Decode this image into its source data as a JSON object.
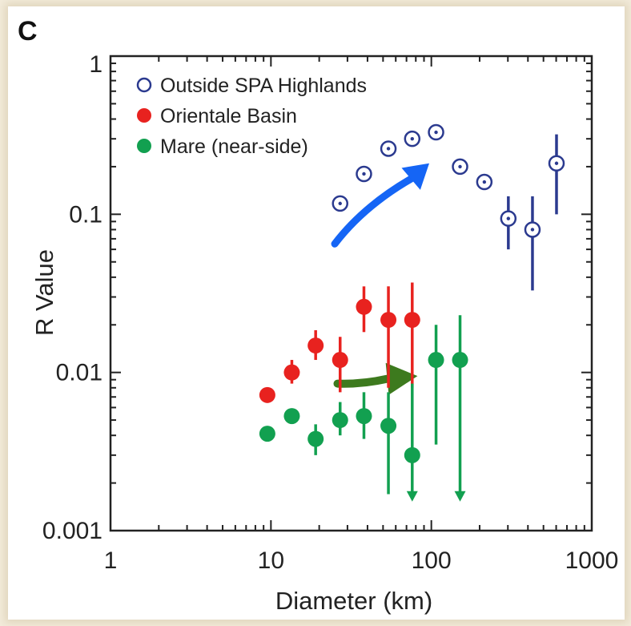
{
  "chart_data": {
    "type": "scatter",
    "panel_label": "C",
    "xlabel": "Diameter (km)",
    "ylabel": "R Value",
    "xscale": "log",
    "yscale": "log",
    "xlim": [
      1,
      1000
    ],
    "ylim": [
      0.001,
      1
    ],
    "x_tick_labels": [
      "1",
      "10",
      "100",
      "1000"
    ],
    "y_tick_labels": [
      "1",
      "0.1",
      "0.01",
      "0.001"
    ],
    "legend_position": "top-left",
    "grid": false,
    "series": [
      {
        "name": "Outside SPA Highlands",
        "marker": "open-circle-dot",
        "color": "#2b3a8f",
        "points": [
          {
            "x": 27,
            "y": 0.117,
            "lo": 0.117,
            "hi": 0.117
          },
          {
            "x": 38,
            "y": 0.18,
            "lo": 0.18,
            "hi": 0.18
          },
          {
            "x": 54,
            "y": 0.26,
            "lo": 0.26,
            "hi": 0.26
          },
          {
            "x": 76,
            "y": 0.3,
            "lo": 0.3,
            "hi": 0.3
          },
          {
            "x": 107,
            "y": 0.33,
            "lo": 0.33,
            "hi": 0.33
          },
          {
            "x": 151,
            "y": 0.2,
            "lo": 0.2,
            "hi": 0.2
          },
          {
            "x": 214,
            "y": 0.16,
            "lo": 0.16,
            "hi": 0.16
          },
          {
            "x": 302,
            "y": 0.094,
            "lo": 0.06,
            "hi": 0.13
          },
          {
            "x": 427,
            "y": 0.08,
            "lo": 0.033,
            "hi": 0.13
          },
          {
            "x": 603,
            "y": 0.21,
            "lo": 0.1,
            "hi": 0.32
          }
        ]
      },
      {
        "name": "Orientale Basin",
        "marker": "filled-circle",
        "color": "#e8221f",
        "points": [
          {
            "x": 9.5,
            "y": 0.0072,
            "lo": 0.0065,
            "hi": 0.0078
          },
          {
            "x": 13.5,
            "y": 0.01,
            "lo": 0.0085,
            "hi": 0.012
          },
          {
            "x": 19,
            "y": 0.0148,
            "lo": 0.012,
            "hi": 0.0185
          },
          {
            "x": 27,
            "y": 0.012,
            "lo": 0.0075,
            "hi": 0.0168
          },
          {
            "x": 38,
            "y": 0.026,
            "lo": 0.018,
            "hi": 0.035
          },
          {
            "x": 54,
            "y": 0.0215,
            "lo": 0.008,
            "hi": 0.035
          },
          {
            "x": 76,
            "y": 0.0215,
            "lo": 0.008,
            "hi": 0.037
          }
        ]
      },
      {
        "name": "Mare (near-side)",
        "marker": "filled-circle",
        "color": "#12a050",
        "points": [
          {
            "x": 9.5,
            "y": 0.0041,
            "lo": 0.0041,
            "hi": 0.0041
          },
          {
            "x": 13.5,
            "y": 0.0053,
            "lo": 0.0053,
            "hi": 0.0053
          },
          {
            "x": 19,
            "y": 0.0038,
            "lo": 0.003,
            "hi": 0.0047
          },
          {
            "x": 27,
            "y": 0.005,
            "lo": 0.004,
            "hi": 0.0065
          },
          {
            "x": 38,
            "y": 0.0053,
            "lo": 0.0038,
            "hi": 0.0075
          },
          {
            "x": 54,
            "y": 0.0046,
            "lo": 0.0017,
            "hi": 0.0075
          },
          {
            "x": 76,
            "y": 0.003,
            "lo": 0.0016,
            "hi": 0.0085,
            "upper_limit": true
          },
          {
            "x": 107,
            "y": 0.012,
            "lo": 0.0035,
            "hi": 0.02
          },
          {
            "x": 151,
            "y": 0.012,
            "lo": 0.0016,
            "hi": 0.023,
            "upper_limit": true
          }
        ]
      }
    ],
    "annotations": [
      {
        "type": "arrow",
        "color": "#1565f5",
        "from": {
          "x": 25,
          "y": 0.065
        },
        "to": {
          "x": 97,
          "y": 0.21
        }
      },
      {
        "type": "arrow",
        "color": "#3d7a1e",
        "from": {
          "x": 26,
          "y": 0.0085
        },
        "to": {
          "x": 82,
          "y": 0.0095
        }
      }
    ]
  }
}
